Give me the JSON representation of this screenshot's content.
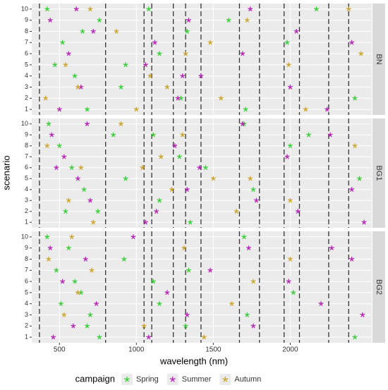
{
  "chart_data": {
    "type": "scatter",
    "xlabel": "wavelength (nm)",
    "ylabel": "scenario",
    "legend_title": "campaign",
    "xlim": [
      320,
      2530
    ],
    "xticks": [
      500,
      1000,
      1500,
      2000
    ],
    "ylim": [
      0.5,
      10.5
    ],
    "yticks": [
      1,
      2,
      3,
      4,
      5,
      6,
      7,
      8,
      9,
      10
    ],
    "grid": true,
    "legend_position": "bottom",
    "vlines": [
      370,
      800,
      1050,
      1100,
      1240,
      1320,
      1420,
      1670,
      1800,
      1960,
      2060,
      2250,
      2380
    ],
    "series": [
      {
        "name": "Spring",
        "color": "#33cc33"
      },
      {
        "name": "Summer",
        "color": "#b31db3"
      },
      {
        "name": "Autumn",
        "color": "#c9a227"
      }
    ],
    "facets": [
      {
        "label": "BN",
        "series": [
          {
            "x": [
              420,
              520,
              600,
              680,
              760,
              900,
              930,
              1080,
              1150,
              1290,
              1330,
              1600,
              1710,
              1980,
              2170,
              2420,
              470,
              650
            ],
            "y": [
              10,
              7,
              4,
              1,
              9,
              3,
              5,
              10,
              6,
              2,
              8,
              9,
              1,
              7,
              10,
              2,
              5,
              8
            ]
          },
          {
            "x": [
              440,
              560,
              640,
              720,
              1060,
              1120,
              1270,
              1340,
              1420,
              1690,
              1740,
              2000,
              2040,
              2240,
              2400,
              500,
              610,
              1300
            ],
            "y": [
              9,
              6,
              3,
              8,
              5,
              7,
              2,
              9,
              4,
              6,
              10,
              3,
              8,
              1,
              7,
              1,
              10,
              4
            ]
          },
          {
            "x": [
              410,
              540,
              700,
              870,
              1000,
              1090,
              1200,
              1320,
              1480,
              1550,
              1720,
              1990,
              2100,
              2380,
              2460,
              620
            ],
            "y": [
              2,
              5,
              10,
              8,
              1,
              4,
              3,
              6,
              7,
              2,
              9,
              5,
              1,
              10,
              6,
              3
            ]
          }
        ]
      },
      {
        "label": "BG1",
        "series": [
          {
            "x": [
              430,
              500,
              580,
              660,
              750,
              850,
              930,
              1110,
              1150,
              1280,
              1350,
              1450,
              1700,
              1760,
              2000,
              2120,
              2450,
              540
            ],
            "y": [
              10,
              8,
              6,
              4,
              2,
              9,
              5,
              9,
              3,
              7,
              1,
              6,
              10,
              4,
              8,
              9,
              5,
              2
            ]
          },
          {
            "x": [
              450,
              530,
              620,
              700,
              1060,
              1130,
              1250,
              1330,
              1410,
              1690,
              1780,
              1980,
              2050,
              2260,
              2400,
              2480,
              480,
              680
            ],
            "y": [
              9,
              7,
              5,
              3,
              1,
              2,
              8,
              4,
              6,
              10,
              3,
              7,
              2,
              9,
              4,
              1,
              6,
              10
            ]
          },
          {
            "x": [
              420,
              560,
              720,
              900,
              1040,
              1160,
              1230,
              1300,
              1500,
              1650,
              1740,
              2000,
              2420,
              640
            ],
            "y": [
              8,
              3,
              1,
              10,
              6,
              7,
              4,
              9,
              5,
              2,
              5,
              3,
              8,
              6
            ]
          }
        ]
      },
      {
        "label": "BG2",
        "series": [
          {
            "x": [
              420,
              480,
              560,
              640,
              700,
              760,
              920,
              1110,
              1150,
              1320,
              1340,
              1700,
              1720,
              2020,
              2420,
              510,
              600,
              680
            ],
            "y": [
              10,
              7,
              9,
              5,
              3,
              1,
              8,
              6,
              4,
              2,
              7,
              10,
              3,
              5,
              1,
              4,
              6,
              2
            ]
          },
          {
            "x": [
              440,
              520,
              590,
              670,
              740,
              980,
              1080,
              1200,
              1330,
              1480,
              1730,
              1760,
              1990,
              2200,
              2270,
              2400,
              2470,
              460
            ],
            "y": [
              9,
              6,
              2,
              8,
              4,
              10,
              1,
              5,
              3,
              7,
              9,
              2,
              6,
              4,
              9,
              8,
              3,
              1
            ]
          },
          {
            "x": [
              430,
              530,
              620,
              710,
              1050,
              1310,
              1440,
              1620,
              1760,
              2000,
              580
            ],
            "y": [
              8,
              3,
              5,
              7,
              2,
              9,
              1,
              4,
              6,
              8,
              10
            ]
          }
        ]
      }
    ]
  }
}
